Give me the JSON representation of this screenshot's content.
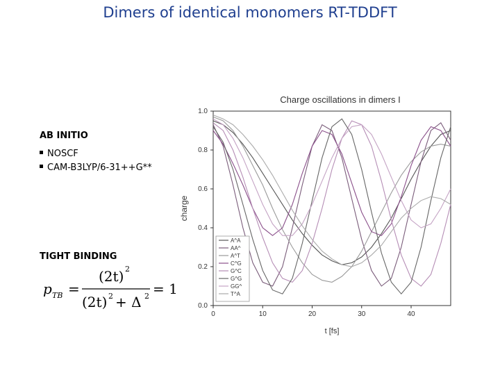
{
  "slide": {
    "title": "Dimers of identical monomers RT-TDDFT",
    "ab_initio": {
      "heading": "AB INITIO",
      "bullets": [
        "NOSCF",
        "CAM-B3LYP/6-31++G**"
      ]
    },
    "tight_binding": {
      "heading": "TIGHT BINDING",
      "formula": {
        "lhs": "p",
        "lhs_sub": "TB",
        "numerator": "(2t)",
        "numerator_exp": "2",
        "denominator_a": "(2t)",
        "denominator_exp": "2",
        "denominator_b": "+ Δ",
        "denominator_b_exp": "2",
        "rhs": "= 1"
      }
    }
  },
  "chart_data": {
    "type": "line",
    "title": "Charge oscillations in dimers I",
    "xlabel": "t [fs]",
    "ylabel": "charge",
    "xlim": [
      0,
      48
    ],
    "ylim": [
      0.0,
      1.0
    ],
    "xticks": [
      "0",
      "10",
      "20",
      "30",
      "40"
    ],
    "yticks": [
      "0.0",
      "0.2",
      "0.4",
      "0.6",
      "0.8",
      "1.0"
    ],
    "legend_position": "bottom-left",
    "series": [
      {
        "name": "A^A",
        "color": "#555555",
        "x": [
          0,
          2,
          4,
          6,
          8,
          10,
          12,
          14,
          16,
          18,
          20,
          22,
          24,
          26,
          28,
          30,
          32,
          34,
          36,
          38,
          40,
          42,
          44,
          46,
          48
        ],
        "y": [
          0.95,
          0.93,
          0.89,
          0.83,
          0.76,
          0.68,
          0.6,
          0.52,
          0.44,
          0.37,
          0.31,
          0.26,
          0.23,
          0.21,
          0.22,
          0.25,
          0.3,
          0.37,
          0.45,
          0.55,
          0.65,
          0.74,
          0.82,
          0.88,
          0.9
        ]
      },
      {
        "name": "AA^",
        "color": "#7a5c7a",
        "x": [
          0,
          2,
          4,
          6,
          8,
          10,
          12,
          14,
          16,
          18,
          20,
          22,
          24,
          26,
          28,
          30,
          32,
          34,
          36,
          38,
          40,
          42,
          44,
          46,
          48
        ],
        "y": [
          0.93,
          0.82,
          0.62,
          0.4,
          0.22,
          0.12,
          0.1,
          0.2,
          0.4,
          0.62,
          0.82,
          0.93,
          0.9,
          0.76,
          0.55,
          0.34,
          0.18,
          0.1,
          0.14,
          0.3,
          0.52,
          0.74,
          0.9,
          0.94,
          0.85
        ]
      },
      {
        "name": "A^T",
        "color": "#9a9a9a",
        "x": [
          0,
          2,
          4,
          6,
          8,
          10,
          12,
          14,
          16,
          18,
          20,
          22,
          24,
          26,
          28,
          30,
          32,
          34,
          36,
          38,
          40,
          42,
          44,
          46,
          48
        ],
        "y": [
          0.97,
          0.95,
          0.9,
          0.82,
          0.72,
          0.62,
          0.5,
          0.39,
          0.3,
          0.22,
          0.16,
          0.13,
          0.12,
          0.15,
          0.2,
          0.28,
          0.38,
          0.48,
          0.58,
          0.67,
          0.74,
          0.79,
          0.82,
          0.83,
          0.82
        ]
      },
      {
        "name": "C^G",
        "color": "#8a4f8a",
        "x": [
          0,
          2,
          4,
          6,
          8,
          10,
          12,
          14,
          16,
          18,
          20,
          22,
          24,
          26,
          28,
          30,
          32,
          34,
          36,
          38,
          40,
          42,
          44,
          46,
          48
        ],
        "y": [
          0.9,
          0.83,
          0.73,
          0.62,
          0.5,
          0.4,
          0.36,
          0.4,
          0.52,
          0.68,
          0.82,
          0.9,
          0.88,
          0.78,
          0.63,
          0.48,
          0.38,
          0.36,
          0.42,
          0.56,
          0.72,
          0.85,
          0.92,
          0.9,
          0.82
        ]
      },
      {
        "name": "G^C",
        "color": "#b58db5",
        "x": [
          0,
          2,
          4,
          6,
          8,
          10,
          12,
          14,
          16,
          18,
          20,
          22,
          24,
          26,
          28,
          30,
          32,
          34,
          36,
          38,
          40,
          42,
          44,
          46,
          48
        ],
        "y": [
          0.94,
          0.9,
          0.8,
          0.66,
          0.5,
          0.35,
          0.22,
          0.14,
          0.12,
          0.18,
          0.32,
          0.5,
          0.7,
          0.86,
          0.95,
          0.93,
          0.82,
          0.64,
          0.44,
          0.26,
          0.14,
          0.1,
          0.16,
          0.32,
          0.52
        ]
      },
      {
        "name": "G^G",
        "color": "#666666",
        "x": [
          0,
          2,
          4,
          6,
          8,
          10,
          12,
          14,
          16,
          18,
          20,
          22,
          24,
          26,
          28,
          30,
          32,
          34,
          36,
          38,
          40,
          42,
          44,
          46,
          48
        ],
        "y": [
          0.92,
          0.84,
          0.7,
          0.52,
          0.34,
          0.18,
          0.08,
          0.06,
          0.14,
          0.32,
          0.54,
          0.76,
          0.92,
          0.96,
          0.88,
          0.7,
          0.48,
          0.27,
          0.12,
          0.06,
          0.12,
          0.3,
          0.54,
          0.76,
          0.92
        ]
      },
      {
        "name": "GG^",
        "color": "#c4a3c4",
        "x": [
          0,
          2,
          4,
          6,
          8,
          10,
          12,
          14,
          16,
          18,
          20,
          22,
          24,
          26,
          28,
          30,
          32,
          34,
          36,
          38,
          40,
          42,
          44,
          46,
          48
        ],
        "y": [
          0.96,
          0.93,
          0.86,
          0.76,
          0.64,
          0.52,
          0.42,
          0.36,
          0.36,
          0.42,
          0.52,
          0.64,
          0.76,
          0.86,
          0.92,
          0.93,
          0.88,
          0.78,
          0.66,
          0.54,
          0.44,
          0.4,
          0.42,
          0.5,
          0.6
        ]
      },
      {
        "name": "T^A",
        "color": "#aaaaaa",
        "x": [
          0,
          2,
          4,
          6,
          8,
          10,
          12,
          14,
          16,
          18,
          20,
          22,
          24,
          26,
          28,
          30,
          32,
          34,
          36,
          38,
          40,
          42,
          44,
          46,
          48
        ],
        "y": [
          0.98,
          0.96,
          0.93,
          0.88,
          0.82,
          0.75,
          0.67,
          0.58,
          0.49,
          0.41,
          0.34,
          0.28,
          0.24,
          0.21,
          0.2,
          0.22,
          0.26,
          0.31,
          0.38,
          0.45,
          0.5,
          0.54,
          0.56,
          0.55,
          0.52
        ]
      }
    ]
  }
}
